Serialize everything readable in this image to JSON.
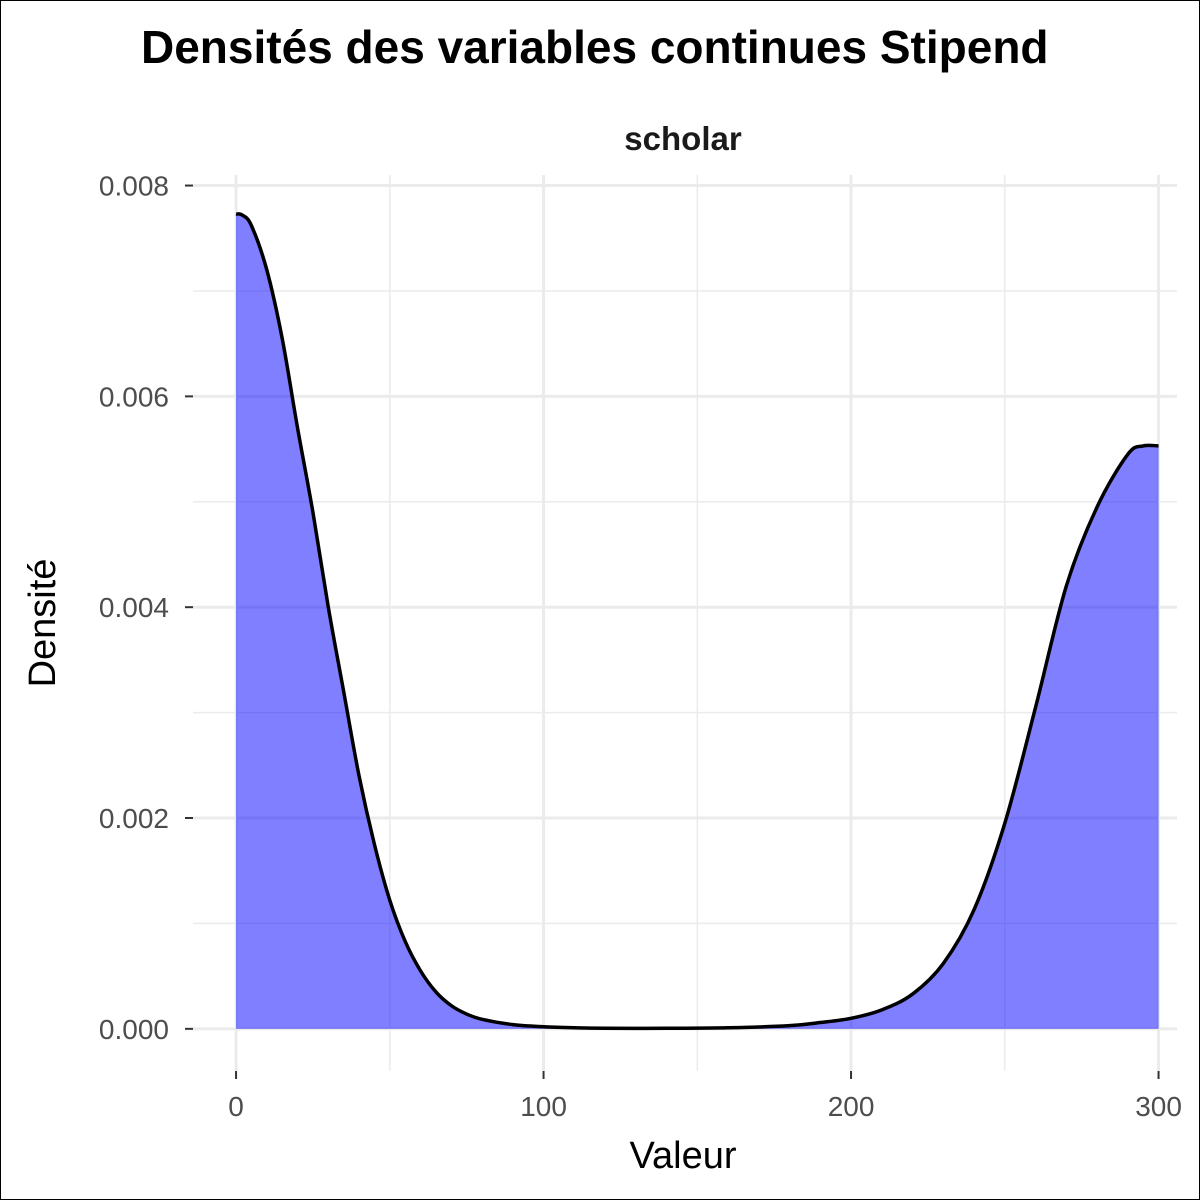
{
  "chart_data": {
    "type": "area",
    "title": "Densités des variables continues Stipend",
    "facet_label": "scholar",
    "xlabel": "Valeur",
    "ylabel": "Densité",
    "xlim": [
      -14,
      306
    ],
    "ylim": [
      -0.0004,
      0.0081
    ],
    "x_ticks": [
      0,
      100,
      200,
      300
    ],
    "x_tick_labels": [
      "0",
      "100",
      "200",
      "300"
    ],
    "x_minor_ticks": [
      50,
      150,
      250
    ],
    "y_ticks": [
      0,
      0.002,
      0.004,
      0.006,
      0.008
    ],
    "y_tick_labels": [
      "0.000",
      "0.002",
      "0.004",
      "0.006",
      "0.008"
    ],
    "y_minor_ticks": [
      0.001,
      0.003,
      0.005,
      0.007
    ],
    "grid": true,
    "legend": "none",
    "colors": {
      "fill": "#0000ff",
      "fill_opacity": 0.5,
      "line": "#000000",
      "grid": "#ebebeb",
      "background": "#ffffff"
    },
    "series": [
      {
        "x": [
          0,
          2,
          5,
          10,
          15,
          20,
          25,
          30,
          35,
          40,
          45,
          50,
          55,
          60,
          65,
          70,
          75,
          80,
          90,
          100,
          110,
          120,
          140,
          160,
          180,
          190,
          200,
          210,
          220,
          230,
          240,
          250,
          260,
          270,
          280,
          290,
          295,
          300
        ],
        "y": [
          0.00773,
          0.00772,
          0.00762,
          0.0072,
          0.00655,
          0.0057,
          0.0049,
          0.004,
          0.0032,
          0.0024,
          0.00175,
          0.00122,
          0.00083,
          0.00055,
          0.00035,
          0.00022,
          0.00014,
          9e-05,
          4e-05,
          2e-05,
          1e-05,
          5e-06,
          5e-06,
          1e-05,
          3e-05,
          6e-05,
          0.0001,
          0.00018,
          0.00033,
          0.00062,
          0.00113,
          0.00195,
          0.00305,
          0.0042,
          0.00495,
          0.00545,
          0.00553,
          0.00553
        ]
      }
    ]
  }
}
